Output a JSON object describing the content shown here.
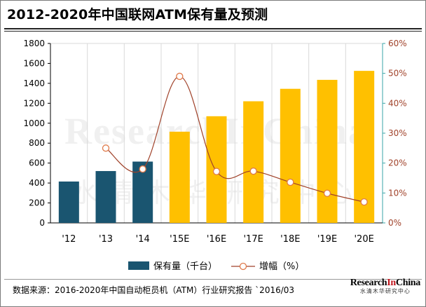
{
  "title": "2012-2020年中国联网ATM保有量及预测",
  "footer": {
    "source": "数据来源：2016-2020年中国自动柜员机（ATM）行业研究报告   `2016/03"
  },
  "brand": {
    "name_part1": "Research",
    "name_part2": "In",
    "name_part3": "China",
    "subtitle": "水清木华研究中心"
  },
  "watermark": {
    "text_en": "ResearchInChina",
    "text_cn": "水清木华研究中心"
  },
  "colors": {
    "bar_actual": "#1a5570",
    "bar_forecast": "#ffc000",
    "line": "#a0422a",
    "marker_fill": "#ffffff",
    "right_axis": "#3aa6a9",
    "grid": "#d9d9d9"
  },
  "chart_data": {
    "type": "bar+line",
    "categories": [
      "'12",
      "'13",
      "'14",
      "'15E",
      "'16E",
      "'17E",
      "'18E",
      "'19E",
      "'20E"
    ],
    "series": [
      {
        "name": "保有量（千台）",
        "kind": "bar",
        "axis": "left",
        "values": [
          415,
          520,
          615,
          915,
          1070,
          1220,
          1345,
          1435,
          1525
        ],
        "forecast_from_index": 3
      },
      {
        "name": "增幅（%）",
        "kind": "line",
        "axis": "right",
        "values": [
          null,
          25.0,
          18.0,
          49.0,
          17.2,
          17.3,
          13.6,
          9.9,
          7.0
        ]
      }
    ],
    "y_left": {
      "min": 0,
      "max": 1800,
      "ticks": [
        0,
        200,
        400,
        600,
        800,
        1000,
        1200,
        1400,
        1600,
        1800
      ]
    },
    "y_right": {
      "min": 0,
      "max": 60,
      "ticks": [
        "0%",
        "10%",
        "20%",
        "30%",
        "40%",
        "50%",
        "60%"
      ]
    },
    "grid": "vertical",
    "legend_position": "bottom"
  }
}
